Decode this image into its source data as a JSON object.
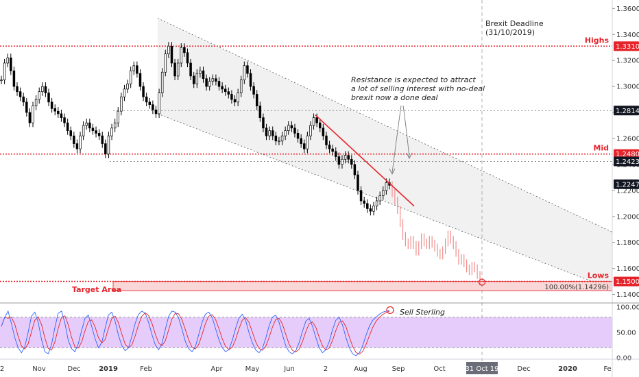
{
  "chart_data": {
    "type": "candlestick",
    "instrument_note": "",
    "price_axis": {
      "ticks": [
        "1.36000",
        "1.34000",
        "1.32000",
        "1.30000",
        "1.28000",
        "1.26000",
        "1.24000",
        "1.22000",
        "1.20000",
        "1.18000",
        "1.16000",
        "1.14000"
      ],
      "range": [
        1.1345,
        1.3665
      ]
    },
    "time_axis": {
      "labels": [
        "2",
        "Nov",
        "Dec",
        "2019",
        "Feb",
        "Apr",
        "May",
        "Jun",
        "2",
        "Aug",
        "Sep",
        "Oct",
        "Dec",
        "2020",
        "Fe"
      ],
      "cursor_label": "31 Oct 19"
    },
    "levels": [
      {
        "name": "Highs",
        "label": "Highs",
        "value": 1.331,
        "badge": "1.33100",
        "color": "#e5232b",
        "style": "dotted"
      },
      {
        "name": "Mid",
        "label": "Mid",
        "value": 1.248,
        "badge": "1.24800",
        "color": "#e5232b",
        "style": "dotted"
      },
      {
        "name": "Lows",
        "label": "Lows",
        "value": 1.15,
        "badge": "1.15000",
        "color": "#e5232b",
        "style": "dotted"
      },
      {
        "name": "level-128147",
        "label": "",
        "value": 1.28147,
        "badge": "1.28147",
        "color": "#131722",
        "style": "dotted-gray"
      },
      {
        "name": "level-124230",
        "label": "",
        "value": 1.2423,
        "badge": "1.24230",
        "color": "#131722",
        "style": "dotted-gray"
      }
    ],
    "last_price": {
      "value": 1.22478,
      "badge": "1.22478"
    },
    "target_area": {
      "label": "Target Area",
      "value_text": "100.00%(1.14296)",
      "top": 1.15,
      "bottom": 1.14296
    },
    "brexit": {
      "line1": "Brexit Deadline",
      "line2": "(31/10/2019)"
    },
    "resistance_note": [
      "Resistance is expected to attract",
      "a lot of selling interest with no-deal",
      "brexit now a done deal"
    ],
    "channel": {
      "upper": [
        [
          0,
          1.3525
        ],
        [
          1,
          1.188
        ]
      ],
      "lower": [
        [
          0,
          1.279
        ],
        [
          1,
          1.144
        ]
      ]
    },
    "history": [
      1.305,
      1.318,
      1.322,
      1.312,
      1.3,
      1.296,
      1.292,
      1.288,
      1.28,
      1.272,
      1.285,
      1.29,
      1.296,
      1.3,
      1.295,
      1.288,
      1.283,
      1.281,
      1.279,
      1.276,
      1.272,
      1.266,
      1.262,
      1.256,
      1.252,
      1.262,
      1.27,
      1.272,
      1.268,
      1.266,
      1.264,
      1.262,
      1.256,
      1.248,
      1.262,
      1.268,
      1.272,
      1.281,
      1.292,
      1.298,
      1.302,
      1.312,
      1.316,
      1.31,
      1.3,
      1.292,
      1.288,
      1.286,
      1.282,
      1.279,
      1.295,
      1.311,
      1.325,
      1.331,
      1.318,
      1.308,
      1.318,
      1.33,
      1.326,
      1.318,
      1.308,
      1.302,
      1.31,
      1.312,
      1.306,
      1.3,
      1.304,
      1.306,
      1.304,
      1.3,
      1.298,
      1.296,
      1.294,
      1.29,
      1.288,
      1.295,
      1.305,
      1.316,
      1.31,
      1.3,
      1.294,
      1.285,
      1.276,
      1.268,
      1.262,
      1.266,
      1.262,
      1.258,
      1.258,
      1.262,
      1.266,
      1.27,
      1.268,
      1.264,
      1.26,
      1.256,
      1.252,
      1.262,
      1.27,
      1.276,
      1.272,
      1.268,
      1.262,
      1.255,
      1.252,
      1.25,
      1.246,
      1.24,
      1.244,
      1.247,
      1.244,
      1.24,
      1.232,
      1.22,
      1.212,
      1.21,
      1.206,
      1.204,
      1.208,
      1.212,
      1.216,
      1.22,
      1.226,
      1.224
    ],
    "projection": [
      1.218,
      1.212,
      1.205,
      1.195,
      1.185,
      1.18,
      1.178,
      1.182,
      1.178,
      1.173,
      1.178,
      1.184,
      1.18,
      1.178,
      1.182,
      1.179,
      1.176,
      1.172,
      1.17,
      1.174,
      1.18,
      1.186,
      1.182,
      1.178,
      1.172,
      1.166,
      1.168,
      1.164,
      1.16,
      1.158,
      1.162,
      1.16,
      1.155,
      1.15
    ],
    "trendline": [
      [
        0.54,
        1.278
      ],
      [
        0.72,
        1.208
      ]
    ],
    "oscillator": {
      "ticks": [
        "100.00",
        "50.00",
        "0.00"
      ],
      "range": [
        0,
        100
      ],
      "band": [
        20,
        80
      ],
      "signal_label": "Sell Sterling",
      "k": [
        62,
        80,
        92,
        68,
        40,
        20,
        10,
        22,
        50,
        82,
        90,
        70,
        36,
        12,
        8,
        26,
        60,
        88,
        92,
        68,
        34,
        18,
        12,
        28,
        54,
        78,
        84,
        62,
        38,
        20,
        30,
        58,
        84,
        90,
        72,
        44,
        24,
        14,
        20,
        42,
        68,
        86,
        92,
        88,
        70,
        46,
        26,
        16,
        28,
        56,
        82,
        92,
        90,
        78,
        56,
        32,
        18,
        12,
        22,
        46,
        70,
        86,
        90,
        80,
        58,
        36,
        20,
        12,
        16,
        34,
        58,
        78,
        86,
        74,
        50,
        30,
        16,
        10,
        18,
        38,
        62,
        80,
        84,
        70,
        46,
        24,
        12,
        8,
        14,
        30,
        52,
        72,
        78,
        62,
        40,
        20,
        10,
        16,
        32,
        56,
        74,
        80,
        64,
        40,
        20,
        8,
        4,
        10,
        24,
        44,
        62,
        74,
        80,
        86,
        90,
        92,
        94
      ]
    }
  }
}
